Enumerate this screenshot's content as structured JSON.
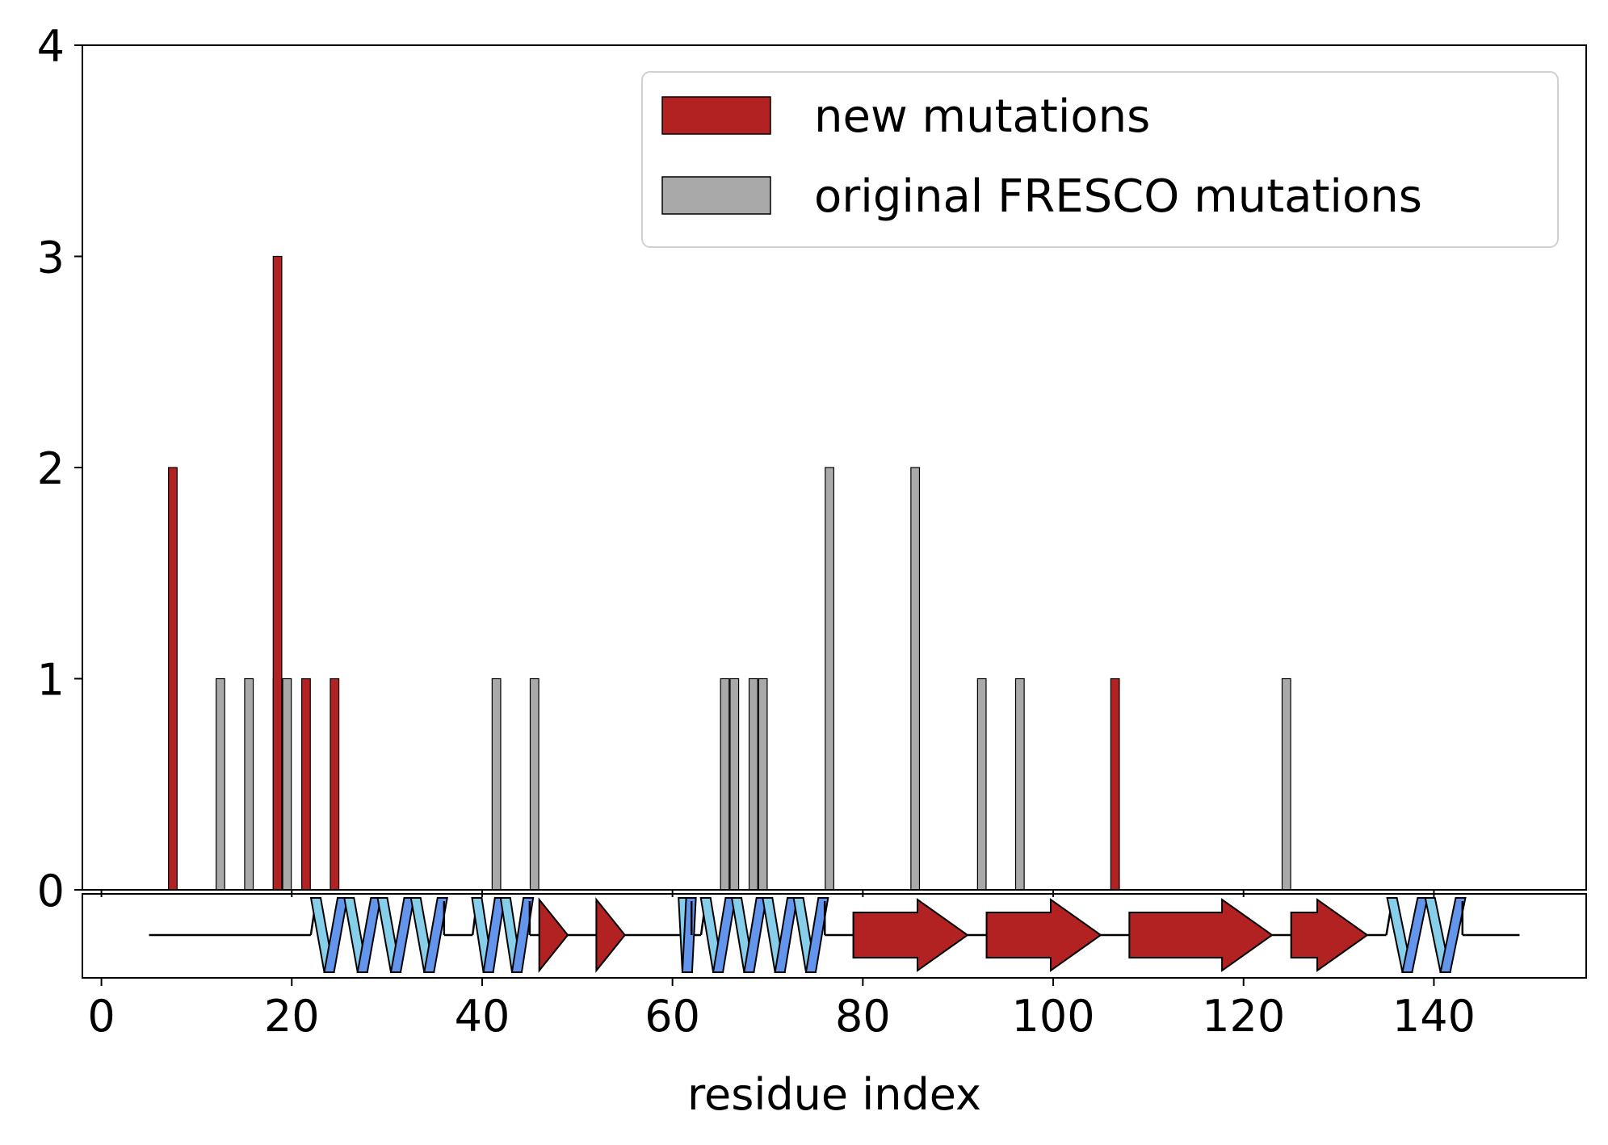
{
  "chart_data": {
    "type": "bar",
    "title": "",
    "xlabel": "residue index",
    "ylabel": "",
    "xlim": [
      -2,
      156
    ],
    "ylim": [
      0,
      4
    ],
    "xticks": [
      0,
      20,
      40,
      60,
      80,
      100,
      120,
      140
    ],
    "yticks": [
      0,
      1,
      2,
      3,
      4
    ],
    "grid": false,
    "legend_position": "top-right",
    "colors": {
      "new": "#b22222",
      "original": "#a9a9a9",
      "helix_light": "#87ceeb",
      "helix_dark": "#6495ed",
      "strand": "#b22222",
      "coil": "#000000"
    },
    "series": [
      {
        "name": "new mutations",
        "key": "new",
        "x": [
          7.5,
          18.5,
          21.5,
          24.5,
          106.5
        ],
        "values": [
          2,
          3,
          1,
          1,
          1
        ]
      },
      {
        "name": "original FRESCO mutations",
        "key": "original",
        "x": [
          12.5,
          15.5,
          18.5,
          19.5,
          41.5,
          45.5,
          65.5,
          66.5,
          68.5,
          69.5,
          76.5,
          85.5,
          92.5,
          96.5,
          124.5
        ],
        "values": [
          1,
          1,
          1,
          1,
          1,
          1,
          1,
          1,
          1,
          1,
          2,
          2,
          1,
          1,
          1
        ]
      }
    ],
    "secondary_structure": {
      "start": 5,
      "end": 149,
      "helices": [
        [
          22,
          36
        ],
        [
          39,
          45
        ],
        [
          61,
          62
        ],
        [
          63,
          76
        ],
        [
          135,
          143
        ]
      ],
      "strands": [
        [
          46,
          49
        ],
        [
          52,
          55
        ],
        [
          79,
          91
        ],
        [
          93,
          105
        ],
        [
          108,
          123
        ],
        [
          125,
          133
        ]
      ]
    }
  }
}
